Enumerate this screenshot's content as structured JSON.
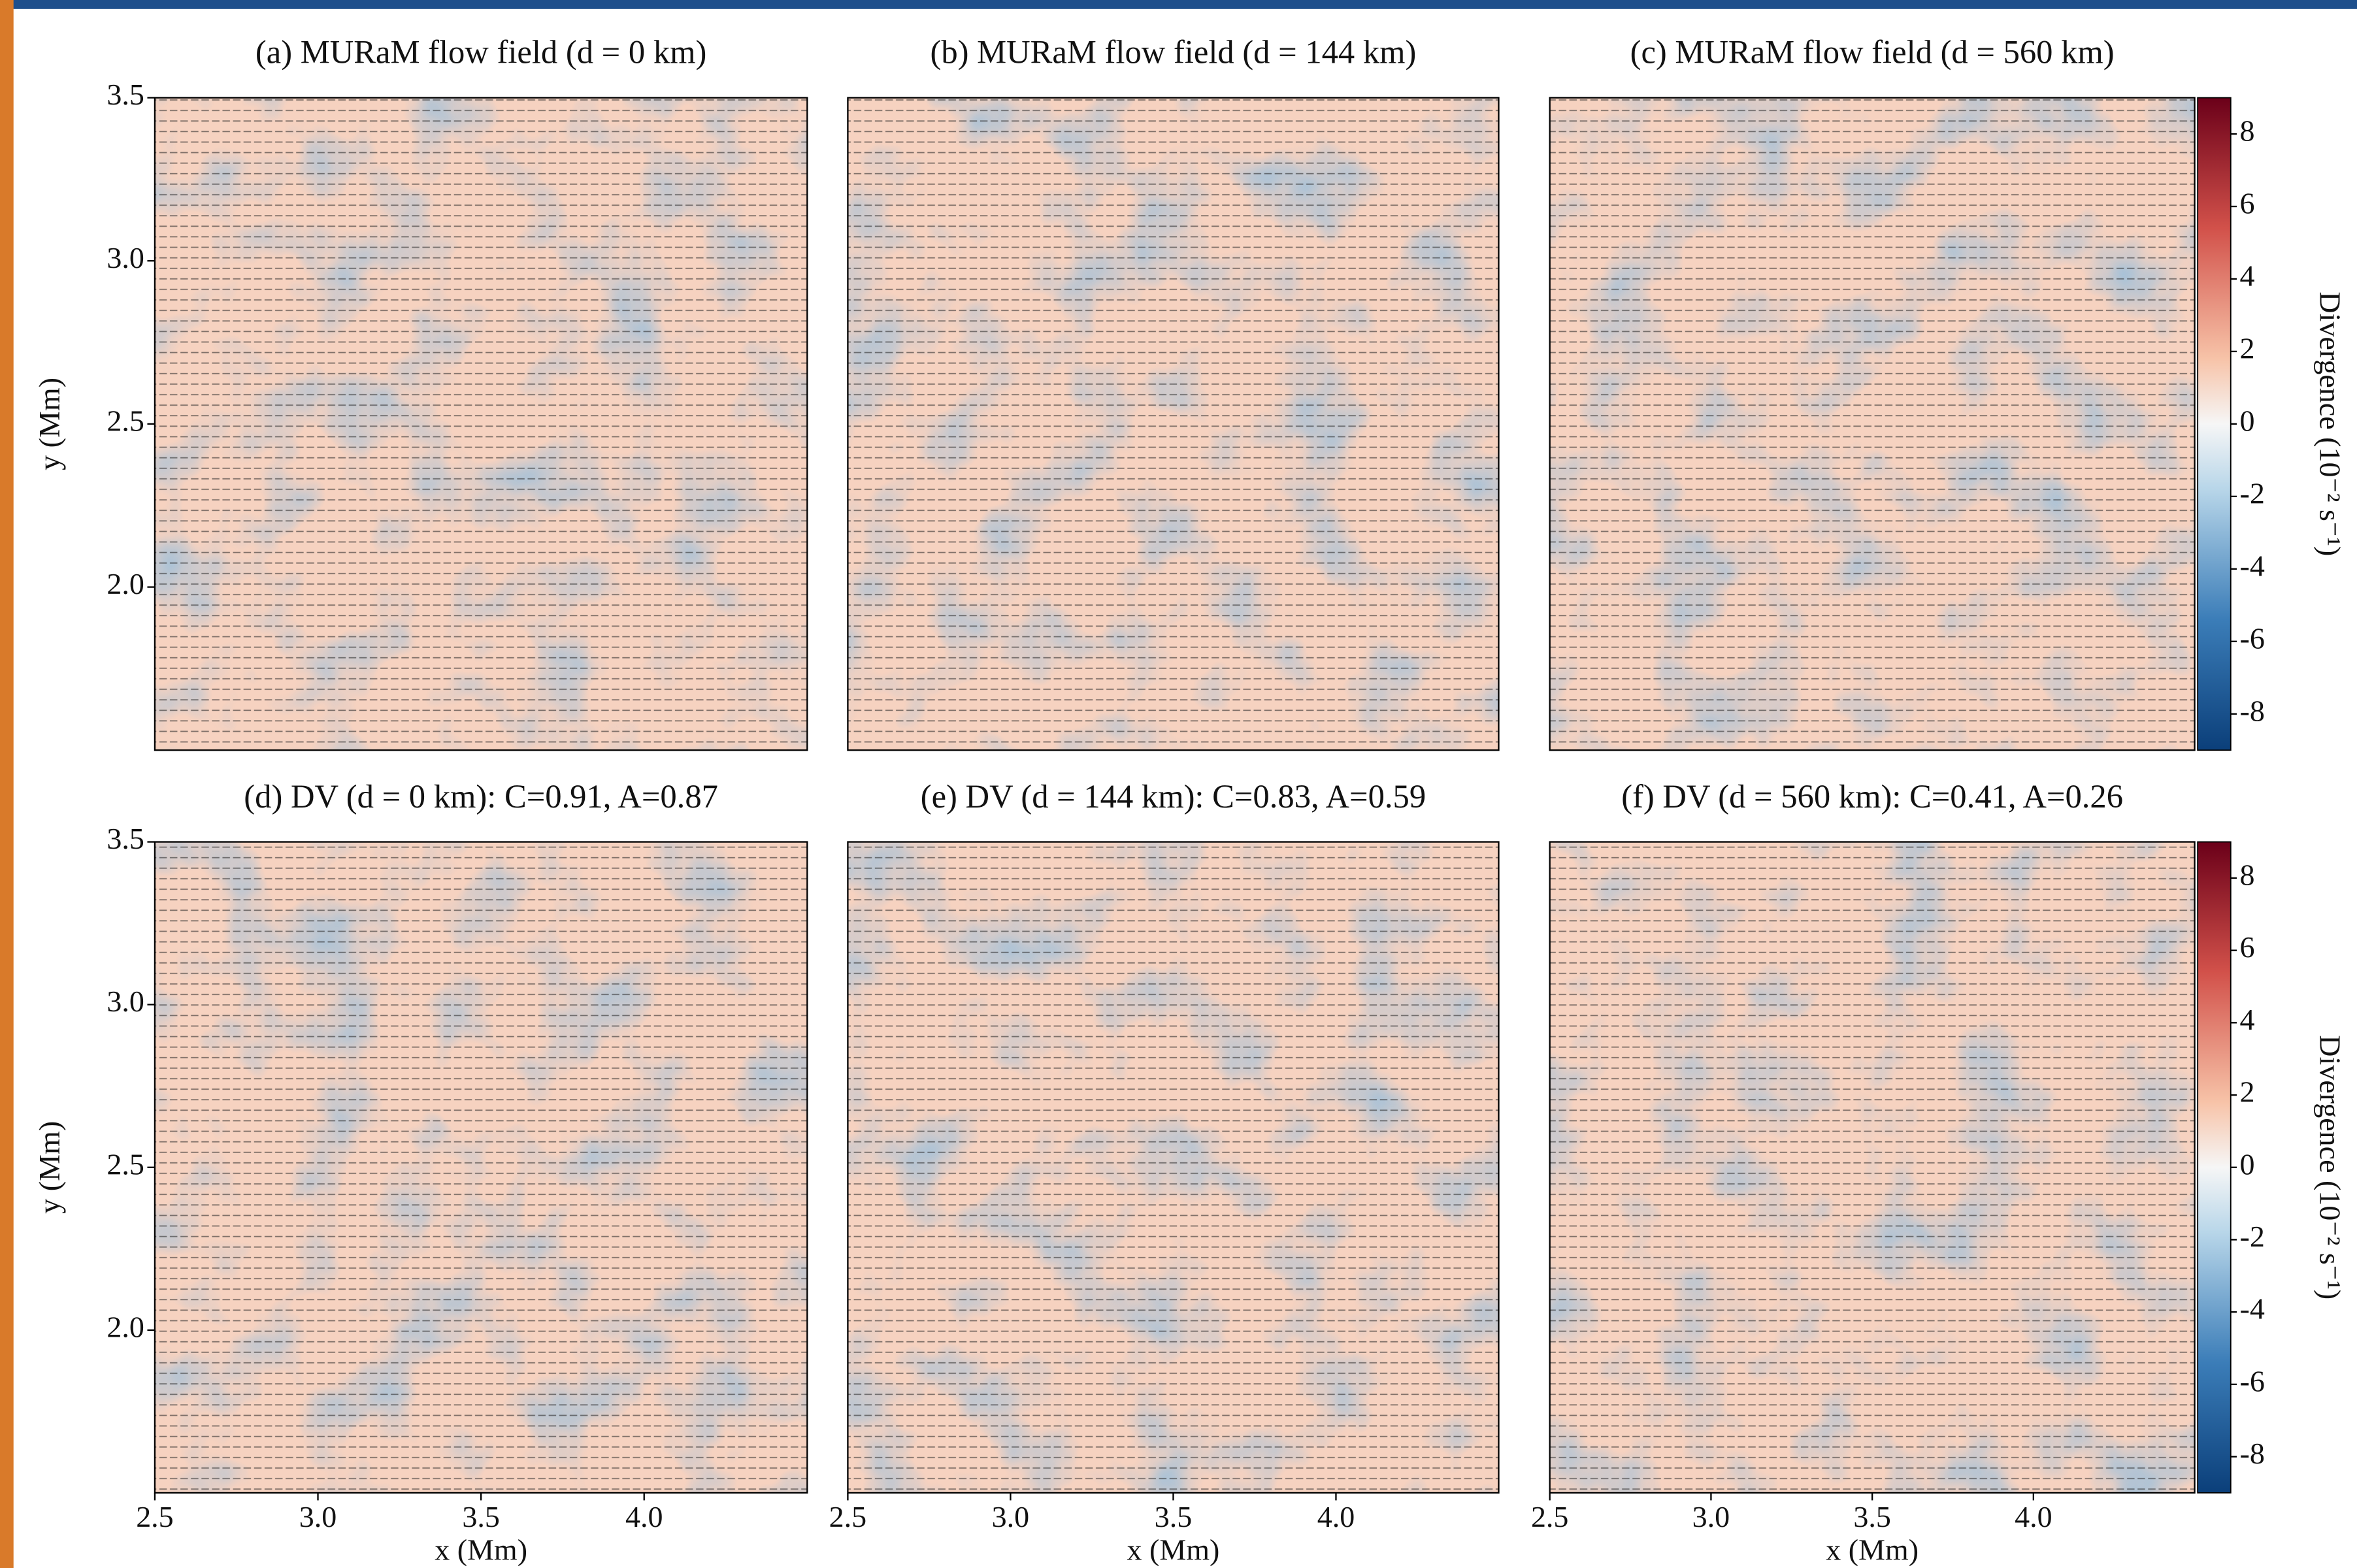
{
  "chart_data": [
    {
      "type": "heatmap",
      "title": "(a) MURaM flow field (d = 0 km)",
      "ylabel": "y (Mm)",
      "xlim": [
        2.5,
        4.5
      ],
      "ylim": [
        1.5,
        3.5
      ],
      "yticks": [
        {
          "value": 2,
          "label": "2.0"
        },
        2.5,
        {
          "value": 3,
          "label": "3.0"
        },
        3.5
      ]
    },
    {
      "type": "heatmap",
      "title": "(b) MURaM flow field (d = 144 km)",
      "xlim": [
        2.5,
        4.5
      ],
      "ylim": [
        1.5,
        3.5
      ]
    },
    {
      "type": "heatmap",
      "title": "(c) MURaM flow field (d = 560 km)",
      "xlim": [
        2.5,
        4.5
      ],
      "ylim": [
        1.5,
        3.5
      ],
      "colorbar_label": "Divergence (10⁻² s⁻¹)",
      "clim": [
        -9,
        9
      ],
      "cticks": [
        -8,
        -6,
        -4,
        -2,
        0,
        2,
        4,
        6,
        8
      ]
    },
    {
      "type": "heatmap",
      "title": "(d) DV (d = 0 km): C=0.91, A=0.87",
      "ylabel": "y (Mm)",
      "xlabel": "x (Mm)",
      "xlim": [
        2.5,
        4.5
      ],
      "ylim": [
        1.5,
        3.5
      ],
      "xticks": [
        2.5,
        {
          "value": 3,
          "label": "3.0"
        },
        3.5,
        {
          "value": 4,
          "label": "4.0"
        }
      ],
      "yticks": [
        {
          "value": 2,
          "label": "2.0"
        },
        2.5,
        {
          "value": 3,
          "label": "3.0"
        },
        3.5
      ]
    },
    {
      "type": "heatmap",
      "title": "(e) DV (d = 144 km): C=0.83, A=0.59",
      "xlabel": "x (Mm)",
      "xlim": [
        2.5,
        4.5
      ],
      "ylim": [
        1.5,
        3.5
      ],
      "xticks": [
        2.5,
        {
          "value": 3,
          "label": "3.0"
        },
        3.5,
        {
          "value": 4,
          "label": "4.0"
        }
      ]
    },
    {
      "type": "heatmap",
      "title": "(f) DV (d = 560 km): C=0.41, A=0.26",
      "xlabel": "x (Mm)",
      "xlim": [
        2.5,
        4.5
      ],
      "ylim": [
        1.5,
        3.5
      ],
      "xticks": [
        2.5,
        {
          "value": 3,
          "label": "3.0"
        },
        3.5,
        {
          "value": 4,
          "label": "4.0"
        }
      ],
      "colorbar_label": "Divergence (10⁻² s⁻¹)",
      "clim": [
        -9,
        9
      ],
      "cticks": [
        -8,
        -6,
        -4,
        -2,
        0,
        2,
        4,
        6,
        8
      ]
    }
  ]
}
